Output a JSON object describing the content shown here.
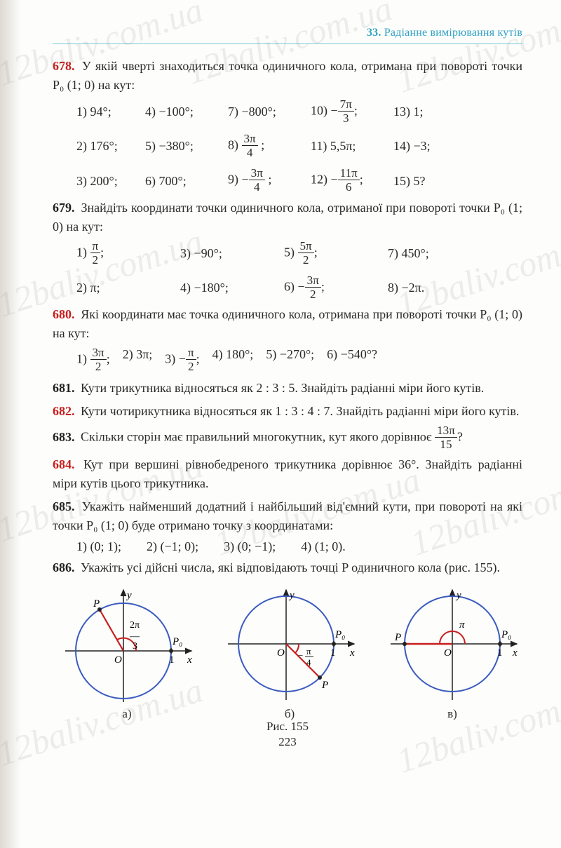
{
  "header": {
    "section_no": "33.",
    "section_title": "Радіанне вимірювання кутів"
  },
  "problems": {
    "p678": {
      "num": "678.",
      "marker": "•",
      "text": "У якій чверті знаходиться точка одиничного кола, отримана при повороті точки P₀ (1; 0) на кут:",
      "items": [
        "1) 94°;",
        "4) −100°;",
        "7) −800°;",
        "10) − ⁷⁄₃π;",
        "13) 1;",
        "2) 176°;",
        "5) −380°;",
        "8) ³⁄₄π ;",
        "11) 5,5π;",
        "14) −3;",
        "3) 200°;",
        "6) 700°;",
        "9) − ³⁄₄π ;",
        "12) − ¹¹⁄₆π;",
        "15) 5?"
      ],
      "items_raw": [
        {
          "n": "1)",
          "v": "94°;"
        },
        {
          "n": "4)",
          "v": "−100°;"
        },
        {
          "n": "7)",
          "v": "−800°;"
        },
        {
          "n": "10)",
          "v": "−",
          "f": [
            "7π",
            "3"
          ],
          "after": ";"
        },
        {
          "n": "13)",
          "v": "1;"
        },
        {
          "n": "2)",
          "v": "176°;"
        },
        {
          "n": "5)",
          "v": "−380°;"
        },
        {
          "n": "8)",
          "f": [
            "3π",
            "4"
          ],
          "after": " ;"
        },
        {
          "n": "11)",
          "v": "5,5π;"
        },
        {
          "n": "14)",
          "v": "−3;"
        },
        {
          "n": "3)",
          "v": "200°;"
        },
        {
          "n": "6)",
          "v": "700°;"
        },
        {
          "n": "9)",
          "v": "−",
          "f": [
            "3π",
            "4"
          ],
          "after": " ;"
        },
        {
          "n": "12)",
          "v": "−",
          "f": [
            "11π",
            "6"
          ],
          "after": ";"
        },
        {
          "n": "15)",
          "v": "5?"
        }
      ]
    },
    "p679": {
      "num": "679.",
      "black": true,
      "text": "Знайдіть координати точки одиничного кола, отриманої при повороті точки P₀ (1; 0) на кут:",
      "items_raw": [
        {
          "n": "1)",
          "f": [
            "π",
            "2"
          ],
          "after": ";"
        },
        {
          "n": "3)",
          "v": "−90°;"
        },
        {
          "n": "5)",
          "f": [
            "5π",
            "2"
          ],
          "after": ";"
        },
        {
          "n": "7)",
          "v": "450°;"
        },
        {
          "n": "2)",
          "v": "π;"
        },
        {
          "n": "4)",
          "v": "−180°;"
        },
        {
          "n": "6)",
          "v": "−",
          "f": [
            "3π",
            "2"
          ],
          "after": ";"
        },
        {
          "n": "8)",
          "v": "−2π."
        }
      ]
    },
    "p680": {
      "num": "680.",
      "text": "Які координати має точка одиничного кола, отримана при повороті точки P₀ (1; 0) на кут:",
      "items_raw": [
        {
          "n": "1)",
          "f": [
            "3π",
            "2"
          ],
          "after": ";"
        },
        {
          "n": "2)",
          "v": "3π;"
        },
        {
          "n": "3)",
          "v": "−",
          "f": [
            "π",
            "2"
          ],
          "after": ";"
        },
        {
          "n": "4)",
          "v": "180°;"
        },
        {
          "n": "5)",
          "v": "−270°;"
        },
        {
          "n": "6)",
          "v": "−540°?"
        }
      ]
    },
    "p681": {
      "num": "681.",
      "black": true,
      "text": "Кути трикутника відносяться як 2 : 3 : 5. Знайдіть радіанні міри його кутів."
    },
    "p682": {
      "num": "682.",
      "text": "Кути чотирикутника відносяться як 1 : 3 : 4 : 7. Знайдіть радіанні міри його кутів."
    },
    "p683": {
      "num": "683.",
      "black": true,
      "text_a": "Скільки сторін має правильний многокутник, кут якого дорівнює ",
      "frac": [
        "13π",
        "15"
      ],
      "text_b": "?"
    },
    "p684": {
      "num": "684.",
      "text": "Кут при вершині рівнобедреного трикутника дорівнює 36°. Знайдіть радіанні міри кутів цього трикутника."
    },
    "p685": {
      "num": "685.",
      "black": true,
      "text": "Укажіть найменший додатний і найбільший від'ємний кути, при повороті на які точки P₀ (1; 0) буде отримано точку з координатами:",
      "items": [
        "1) (0; 1);",
        "2) (−1; 0);",
        "3) (0; −1);",
        "4) (1; 0)."
      ]
    },
    "p686": {
      "num": "686.",
      "black": true,
      "text": "Укажіть усі дійсні числа, які відповідають точці P одиничного кола (рис. 155).",
      "labels": [
        "а)",
        "б)",
        "в)"
      ],
      "caption": "Рис. 155"
    }
  },
  "figure": {
    "a": {
      "angle_label": "2π/3",
      "p0": "P₀",
      "xlab": "x",
      "ylab": "y",
      "O": "O",
      "one": "1",
      "arc_color": "#c81e1e",
      "line_color": "#c81e1e"
    },
    "b": {
      "angle_label": "−π/4"
    },
    "c": {
      "angle_label": "π"
    }
  },
  "colors": {
    "header": "#2fa1c4",
    "rule": "#7bcbe0",
    "red": "#c81e1e",
    "text": "#2a2a2a",
    "circle": "#3a5bbf",
    "axis": "#222"
  },
  "page_number": "223",
  "watermarks": [
    "12baliv.com.ua"
  ]
}
